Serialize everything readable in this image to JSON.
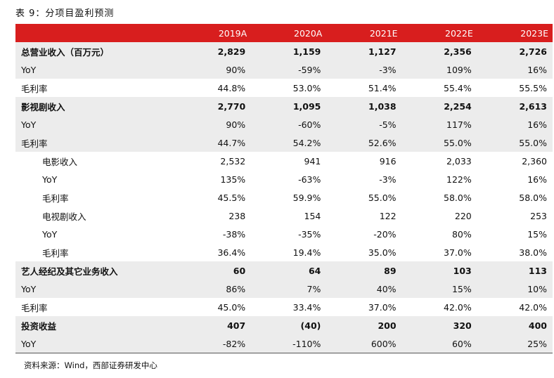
{
  "caption": "表 9：分项目盈利预测",
  "table": {
    "corner_label": "",
    "years": [
      "2019A",
      "2020A",
      "2021E",
      "2022E",
      "2023E"
    ],
    "rows": [
      {
        "label": "总营业收入（百万元）",
        "values": [
          "2,829",
          "1,159",
          "1,127",
          "2,356",
          "2,726"
        ],
        "bold": true,
        "shaded": true,
        "indent": false
      },
      {
        "label": "YoY",
        "values": [
          "90%",
          "-59%",
          "-3%",
          "109%",
          "16%"
        ],
        "bold": false,
        "shaded": true,
        "indent": false
      },
      {
        "label": "毛利率",
        "values": [
          "44.8%",
          "53.0%",
          "51.4%",
          "55.4%",
          "55.5%"
        ],
        "bold": false,
        "shaded": false,
        "indent": false
      },
      {
        "label": "影视剧收入",
        "values": [
          "2,770",
          "1,095",
          "1,038",
          "2,254",
          "2,613"
        ],
        "bold": true,
        "shaded": true,
        "indent": false
      },
      {
        "label": "YoY",
        "values": [
          "90%",
          "-60%",
          "-5%",
          "117%",
          "16%"
        ],
        "bold": false,
        "shaded": true,
        "indent": false
      },
      {
        "label": "毛利率",
        "values": [
          "44.7%",
          "54.2%",
          "52.6%",
          "55.0%",
          "55.0%"
        ],
        "bold": false,
        "shaded": true,
        "indent": false
      },
      {
        "label": "电影收入",
        "values": [
          "2,532",
          "941",
          "916",
          "2,033",
          "2,360"
        ],
        "bold": false,
        "shaded": false,
        "indent": true
      },
      {
        "label": "YoY",
        "values": [
          "135%",
          "-63%",
          "-3%",
          "122%",
          "16%"
        ],
        "bold": false,
        "shaded": false,
        "indent": true
      },
      {
        "label": "毛利率",
        "values": [
          "45.5%",
          "59.9%",
          "55.0%",
          "58.0%",
          "58.0%"
        ],
        "bold": false,
        "shaded": false,
        "indent": true
      },
      {
        "label": "电视剧收入",
        "values": [
          "238",
          "154",
          "122",
          "220",
          "253"
        ],
        "bold": false,
        "shaded": false,
        "indent": true
      },
      {
        "label": "YoY",
        "values": [
          "-38%",
          "-35%",
          "-20%",
          "80%",
          "15%"
        ],
        "bold": false,
        "shaded": false,
        "indent": true
      },
      {
        "label": "毛利率",
        "values": [
          "36.4%",
          "19.4%",
          "35.0%",
          "37.0%",
          "38.0%"
        ],
        "bold": false,
        "shaded": false,
        "indent": true
      },
      {
        "label": "艺人经纪及其它业务收入",
        "values": [
          "60",
          "64",
          "89",
          "103",
          "113"
        ],
        "bold": true,
        "shaded": true,
        "indent": false
      },
      {
        "label": "YoY",
        "values": [
          "86%",
          "7%",
          "40%",
          "15%",
          "10%"
        ],
        "bold": false,
        "shaded": true,
        "indent": false
      },
      {
        "label": "毛利率",
        "values": [
          "45.0%",
          "33.4%",
          "37.0%",
          "42.0%",
          "42.0%"
        ],
        "bold": false,
        "shaded": false,
        "indent": false
      },
      {
        "label": "投资收益",
        "values": [
          "407",
          "(40)",
          "200",
          "320",
          "400"
        ],
        "bold": true,
        "shaded": true,
        "indent": false
      },
      {
        "label": "YoY",
        "values": [
          "-82%",
          "-110%",
          "600%",
          "60%",
          "25%"
        ],
        "bold": false,
        "shaded": true,
        "indent": false
      }
    ]
  },
  "source": "资料来源：Wind，西部证券研发中心",
  "colors": {
    "header_bg": "#d81e1e",
    "shaded_row": "#ececec"
  }
}
